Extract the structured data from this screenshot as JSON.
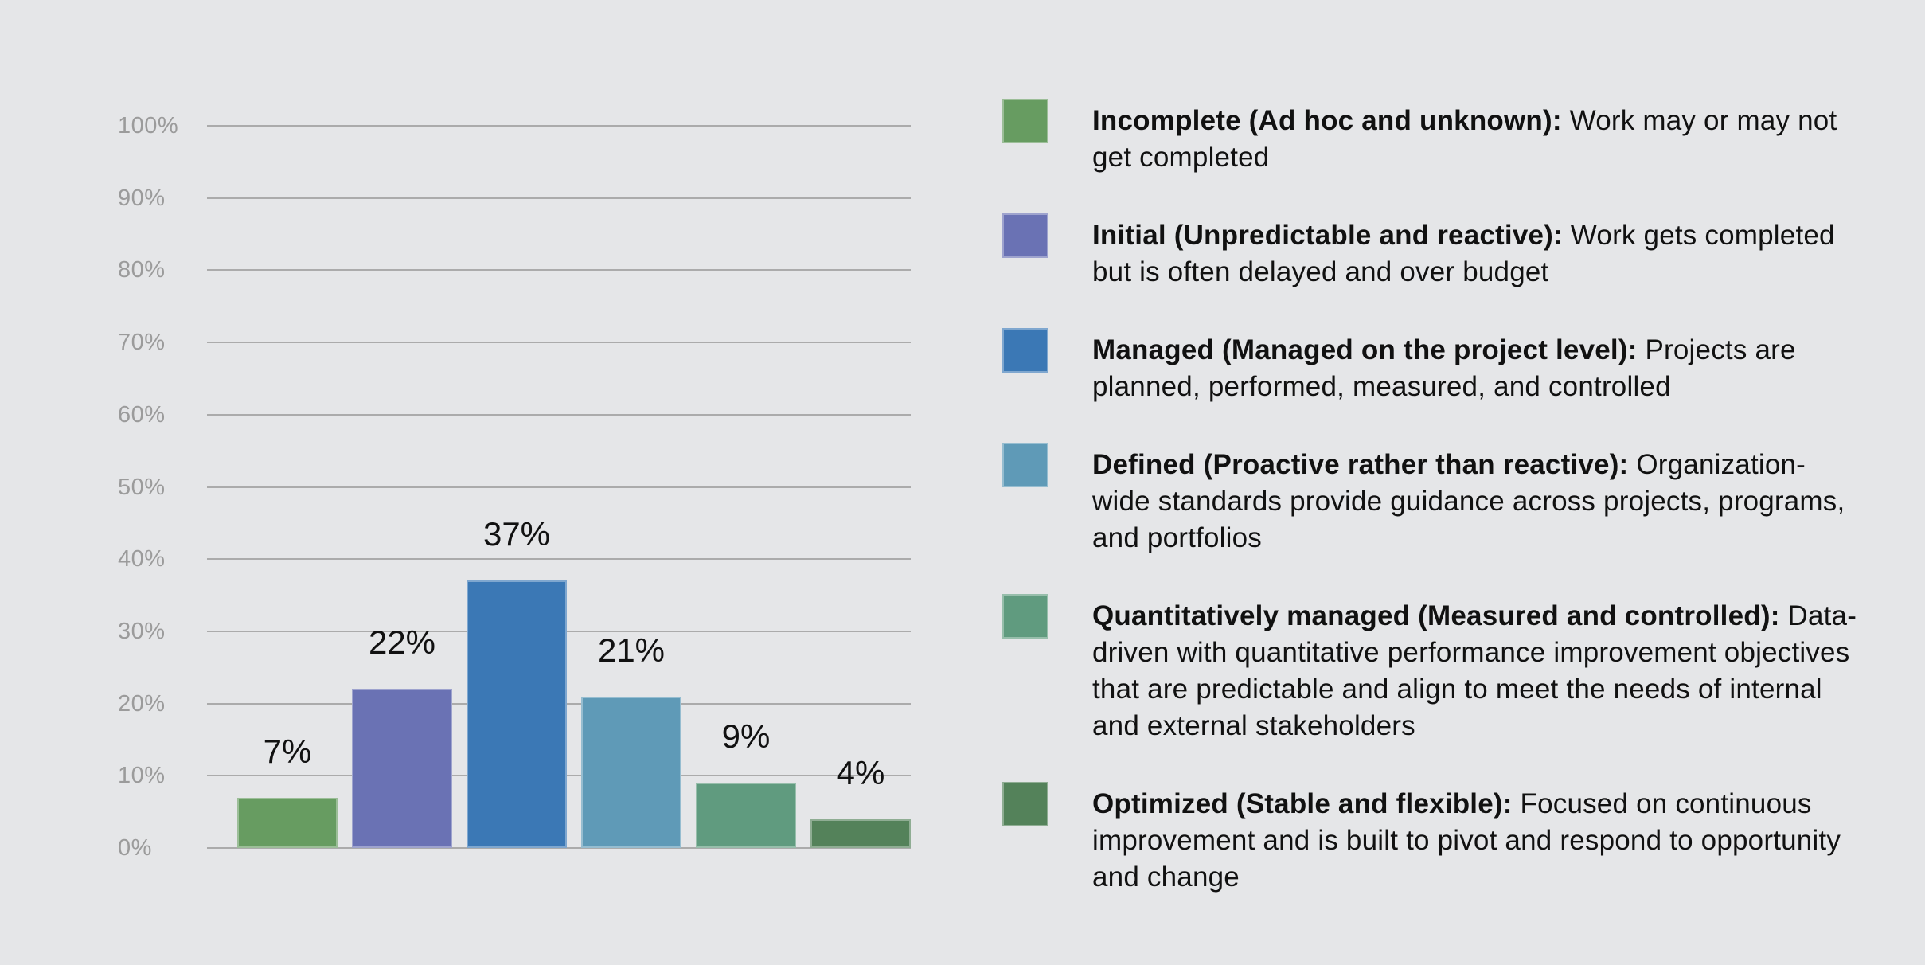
{
  "colors": {
    "background": "#e5e6e8",
    "gridline": "#ababab",
    "axis_label": "#9b9b9b",
    "data_label": "#111111",
    "legend_text": "#111111"
  },
  "chart_data": {
    "type": "bar",
    "title": "",
    "xlabel": "",
    "ylabel": "",
    "categories": [
      "Incomplete",
      "Initial",
      "Managed",
      "Defined",
      "Quantitatively managed",
      "Optimized"
    ],
    "values": [
      7,
      22,
      37,
      21,
      9,
      4
    ],
    "value_labels": [
      "7%",
      "22%",
      "37%",
      "21%",
      "9%",
      "4%"
    ],
    "bar_colors": [
      "#679c61",
      "#6a72b4",
      "#3b78b5",
      "#5f9ab7",
      "#609b7f",
      "#54825a"
    ],
    "ylim": [
      0,
      100
    ],
    "yticks": [
      0,
      10,
      20,
      30,
      40,
      50,
      60,
      70,
      80,
      90,
      100
    ],
    "ytick_labels": [
      "0%",
      "10%",
      "20%",
      "30%",
      "40%",
      "50%",
      "60%",
      "70%",
      "80%",
      "90%",
      "100%"
    ],
    "grid": true,
    "legend_position": "right"
  },
  "legend": {
    "items": [
      {
        "term": "Incomplete (Ad hoc and unknown):",
        "description": " Work may or may not get completed",
        "color": "#679c61"
      },
      {
        "term": "Initial (Unpredictable and reactive):",
        "description": " Work gets completed but is often delayed and over budget",
        "color": "#6a72b4"
      },
      {
        "term": "Managed (Managed on the project level):",
        "description": " Projects are planned, performed, measured, and controlled",
        "color": "#3b78b5"
      },
      {
        "term": "Defined (Proactive rather than reactive):",
        "description": " Organization-wide standards provide guidance across projects, programs, and portfolios",
        "color": "#5f9ab7"
      },
      {
        "term": "Quantitatively managed (Measured and controlled):",
        "description": " Data-driven with quantitative performance improvement objectives that are predictable and align to meet the needs of internal and external stakeholders",
        "color": "#609b7f"
      },
      {
        "term": "Optimized (Stable and flexible):",
        "description": " Focused on continuous improvement and is built to pivot and respond to opportunity and change",
        "color": "#54825a"
      }
    ]
  }
}
